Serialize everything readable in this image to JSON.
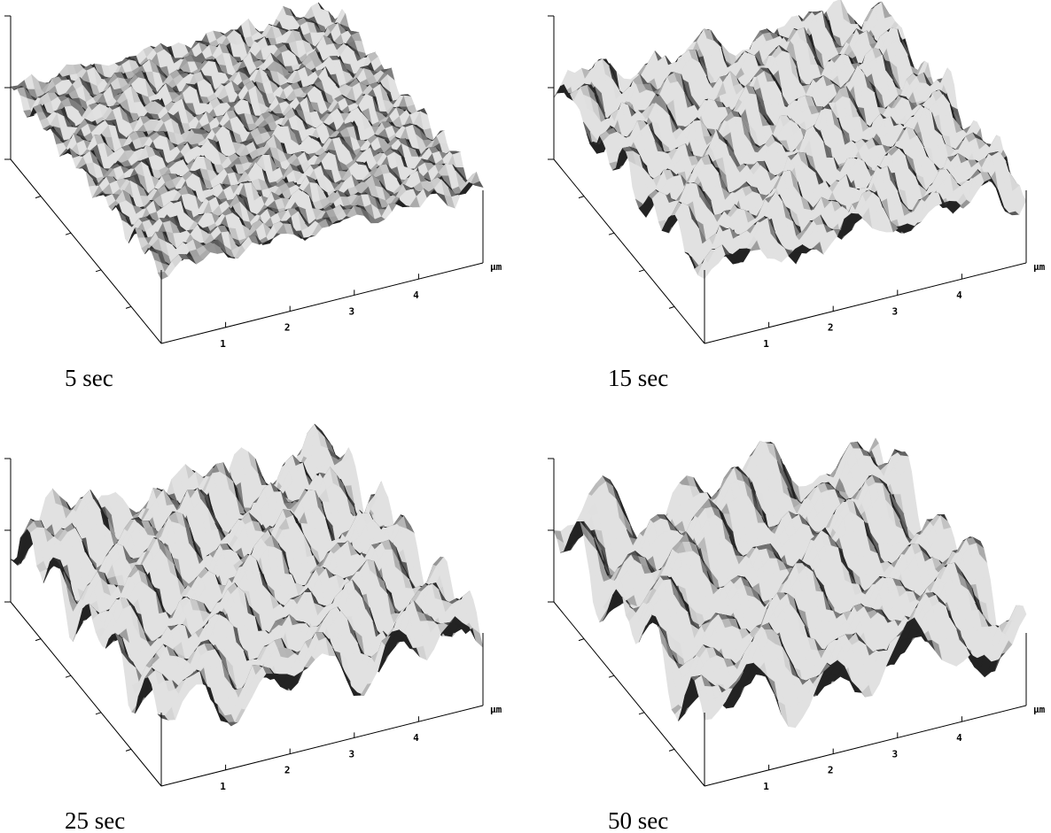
{
  "panels": [
    {
      "caption": "5 sec",
      "x_ticks": [
        "1",
        "2",
        "3",
        "4"
      ],
      "unit": "µm"
    },
    {
      "caption": "15 sec",
      "x_ticks": [
        "1",
        "2",
        "3",
        "4"
      ],
      "unit": "µm"
    },
    {
      "caption": "25 sec",
      "x_ticks": [
        "1",
        "2",
        "3",
        "4"
      ],
      "unit": "µm"
    },
    {
      "caption": "50 sec",
      "x_ticks": [
        "1",
        "2",
        "3",
        "4"
      ],
      "unit": "µm"
    }
  ]
}
